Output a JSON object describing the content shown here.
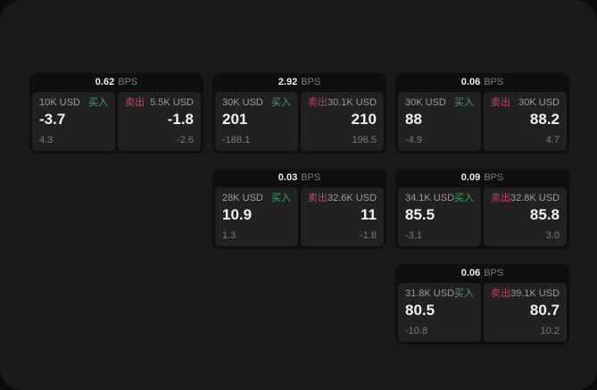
{
  "app": {
    "name": "quote-board"
  },
  "labels": {
    "bps_unit": "BPS",
    "buy": "买入",
    "sell": "卖出"
  },
  "colors": {
    "page_bg": "#0b0b0b",
    "panel_bg": "#191919",
    "card_bg": "#0f0f0f",
    "cell_bg": "#212121",
    "buy_green": "#3aa566",
    "sell_red": "#c24560",
    "bps_value": "#ececec",
    "bps_unit": "#7d7d7d",
    "amount_label": "#9c9c9c",
    "price_value": "#f1f1f1",
    "delta_value": "#7a7a7a"
  },
  "cards": [
    {
      "col": 1,
      "row": 1,
      "bps": "0.62",
      "buy": {
        "amount": "10K USD",
        "price": "-3.7",
        "delta": "4.3"
      },
      "sell": {
        "amount": "5.5K USD",
        "price": "-1.8",
        "delta": "-2.6"
      }
    },
    {
      "col": 2,
      "row": 1,
      "bps": "2.92",
      "buy": {
        "amount": "30K USD",
        "price": "201",
        "delta": "-188.1"
      },
      "sell": {
        "amount": "30.1K USD",
        "price": "210",
        "delta": "196.5"
      }
    },
    {
      "col": 3,
      "row": 1,
      "bps": "0.06",
      "buy": {
        "amount": "30K USD",
        "price": "88",
        "delta": "-4.9"
      },
      "sell": {
        "amount": "30K USD",
        "price": "88.2",
        "delta": "4.7"
      }
    },
    {
      "col": 2,
      "row": 2,
      "bps": "0.03",
      "buy": {
        "amount": "28K USD",
        "price": "10.9",
        "delta": "1.3"
      },
      "sell": {
        "amount": "32.6K USD",
        "price": "11",
        "delta": "-1.8"
      }
    },
    {
      "col": 3,
      "row": 2,
      "bps": "0.09",
      "buy": {
        "amount": "34.1K USD",
        "price": "85.5",
        "delta": "-3.1"
      },
      "sell": {
        "amount": "32.8K USD",
        "price": "85.8",
        "delta": "3.0"
      }
    },
    {
      "col": 3,
      "row": 3,
      "bps": "0.06",
      "buy": {
        "amount": "31.8K USD",
        "price": "80.5",
        "delta": "-10.8"
      },
      "sell": {
        "amount": "39.1K USD",
        "price": "80.7",
        "delta": "10.2"
      }
    }
  ]
}
